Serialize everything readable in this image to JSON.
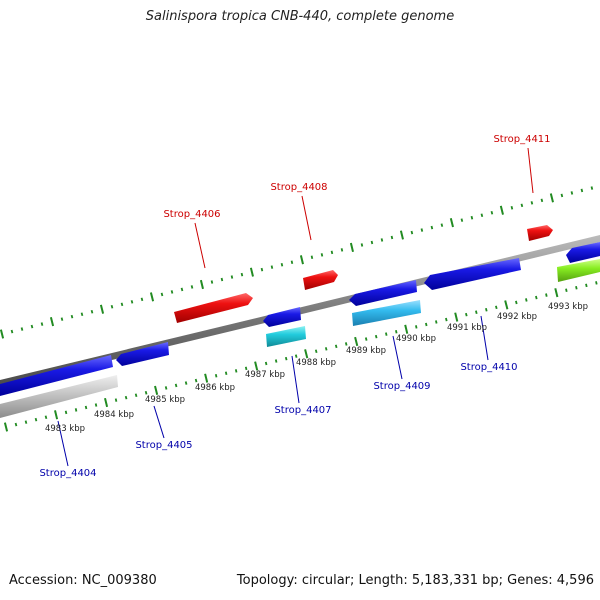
{
  "title": "Salinispora tropica CNB-440, complete genome",
  "accession": "Accession: NC_009380",
  "summary": "Topology: circular; Length: 5,183,331 bp; Genes: 4,596",
  "colors": {
    "forward_label": "#cc0000",
    "reverse_label": "#0000aa",
    "tick": "#228B22",
    "backbone": "#7a7a7a",
    "red_gene": "#ee1111",
    "blue_gene": "#1a1ae6",
    "cyan_gene": "#22ccdd",
    "lightblue_gene": "#33bbee",
    "grey_gene": "#c8c8c8",
    "green_gene": "#88ee22"
  },
  "scale_labels": [
    {
      "text": "4983 kbp"
    },
    {
      "text": "4984 kbp"
    },
    {
      "text": "4985 kbp"
    },
    {
      "text": "4986 kbp"
    },
    {
      "text": "4987 kbp"
    },
    {
      "text": "4988 kbp"
    },
    {
      "text": "4989 kbp"
    },
    {
      "text": "4990 kbp"
    },
    {
      "text": "4991 kbp"
    },
    {
      "text": "4992 kbp"
    },
    {
      "text": "4993 kbp"
    }
  ],
  "gene_labels": [
    {
      "text": "Strop_4406",
      "strand": "forward"
    },
    {
      "text": "Strop_4408",
      "strand": "forward"
    },
    {
      "text": "Strop_4411",
      "strand": "forward"
    },
    {
      "text": "Strop_4404",
      "strand": "reverse"
    },
    {
      "text": "Strop_4405",
      "strand": "reverse"
    },
    {
      "text": "Strop_4407",
      "strand": "reverse"
    },
    {
      "text": "Strop_4409",
      "strand": "reverse"
    },
    {
      "text": "Strop_4410",
      "strand": "reverse"
    }
  ]
}
